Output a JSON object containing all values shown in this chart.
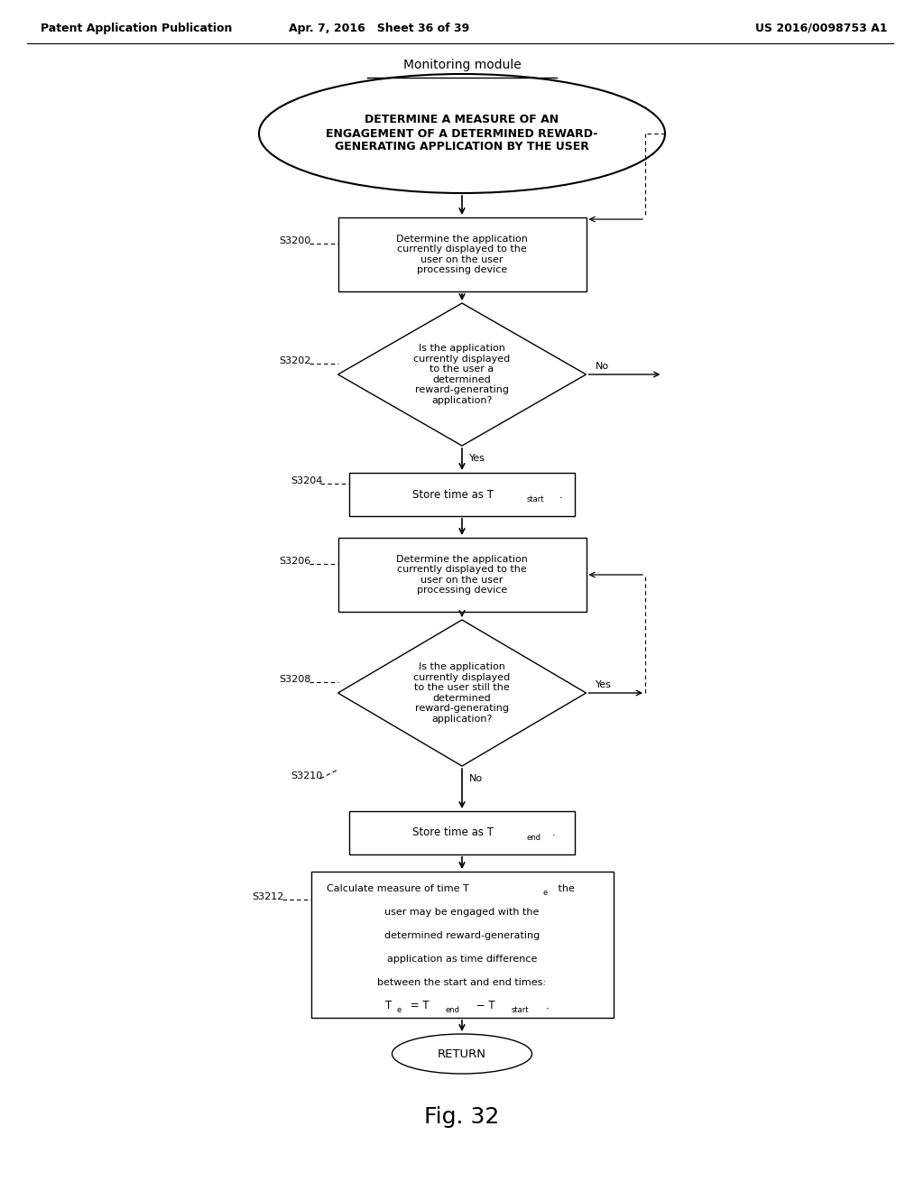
{
  "header_left": "Patent Application Publication",
  "header_mid": "Apr. 7, 2016   Sheet 36 of 39",
  "header_right": "US 2016/0098753 A1",
  "title": "Monitoring module",
  "fig_label": "Fig. 32",
  "top_oval_text": "DETERMINE A MEASURE OF AN\nENGAGEMENT OF A DETERMINED REWARD-\nGENERATING APPLICATION BY THE USER",
  "background_color": "#ffffff",
  "text_color": "#000000",
  "font_size_header": 9,
  "font_size_node": 8,
  "font_size_step": 8,
  "font_size_title": 10,
  "font_size_fig": 18
}
